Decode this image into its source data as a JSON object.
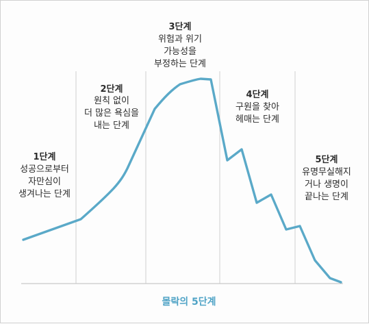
{
  "caption": "몰락의 5단계",
  "colors": {
    "curve": "#5aa9c8",
    "caption": "#4fa3c6",
    "divider": "#cfcfcf",
    "baseline": "#bdbdbd",
    "text": "#2b2b2b"
  },
  "stages": [
    {
      "title": "1단계",
      "lines": [
        "성공으로부터",
        "자만심이",
        "생겨나는 단계"
      ]
    },
    {
      "title": "2단계",
      "lines": [
        "원칙 없이",
        "더 많은 욕심을",
        "내는 단계"
      ]
    },
    {
      "title": "3단계",
      "lines": [
        "위험과 위기",
        "가능성을",
        "부정하는 단계"
      ]
    },
    {
      "title": "4단계",
      "lines": [
        "구원을 찾아",
        "헤매는 단계"
      ]
    },
    {
      "title": "5단계",
      "lines": [
        "유명무실해지",
        "거나 생명이",
        "끝나는 단계"
      ]
    }
  ]
}
